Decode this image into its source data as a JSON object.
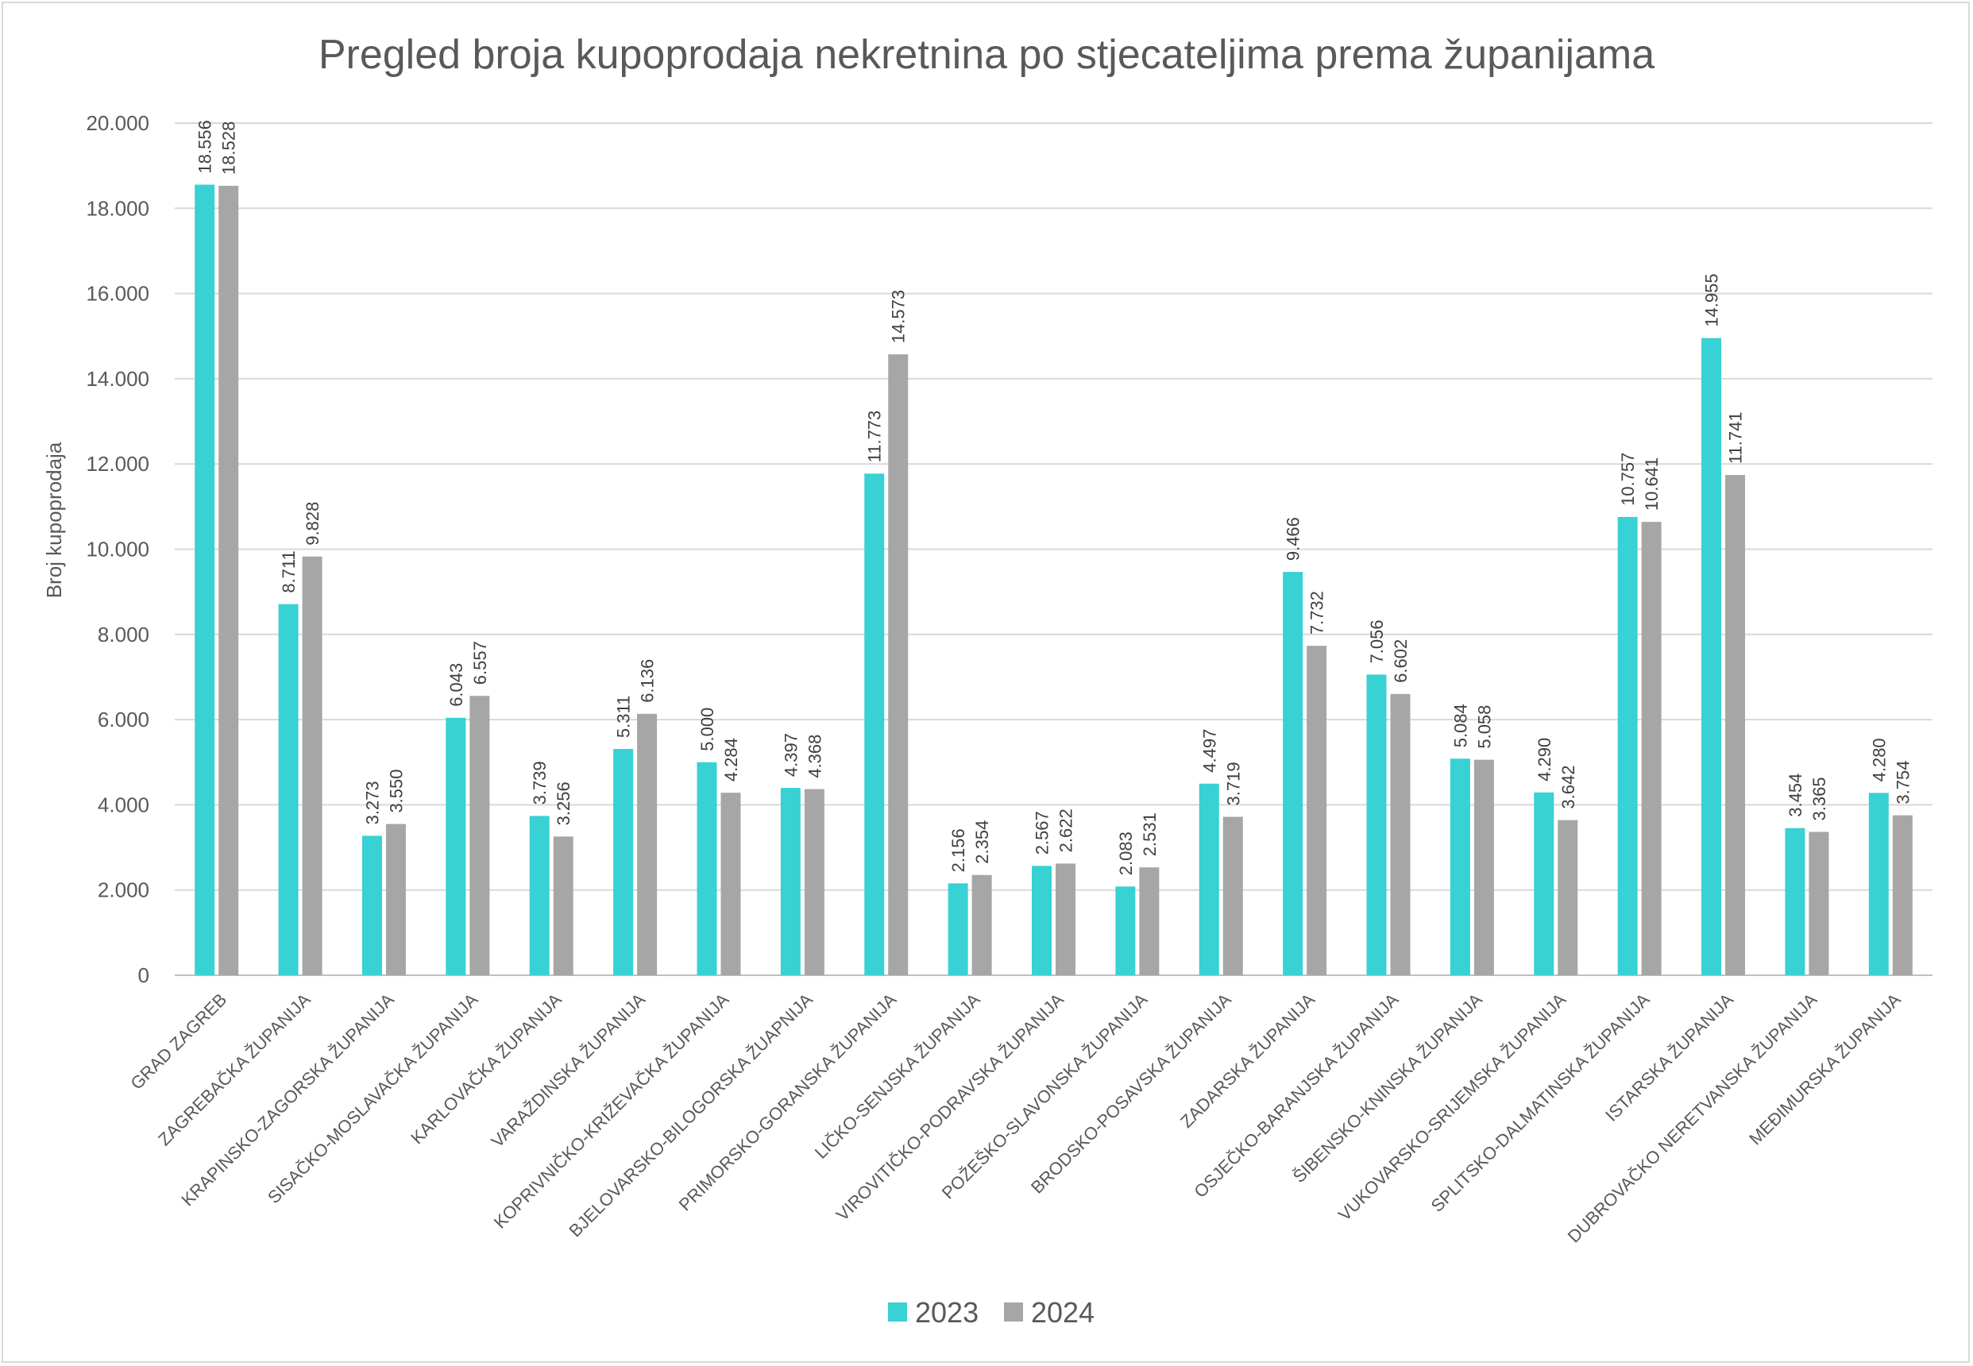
{
  "chart_data": {
    "type": "bar",
    "title": "Pregled broja kupoprodaja nekretnina po stjecateljima prema županijama",
    "ylabel": "Broj kupoprodaja",
    "xlabel": "",
    "ylim": [
      0,
      20000
    ],
    "yticks": [
      "0",
      "2.000",
      "4.000",
      "6.000",
      "8.000",
      "10.000",
      "12.000",
      "14.000",
      "16.000",
      "18.000",
      "20.000"
    ],
    "grid": true,
    "legend_position": "bottom",
    "categories": [
      "GRAD ZAGREB",
      "ZAGREBAČKA ŽUPANIJA",
      "KRAPINSKO-ZAGORSKA ŽUPANIJA",
      "SISAČKO-MOSLAVAČKA ŽUPANIJA",
      "KARLOVAČKA ŽUPANIJA",
      "VARAŽDINSKA ŽUPANIJA",
      "KOPRIVNIČKO-KRIŽEVAČKA ŽUPANIJA",
      "BJELOVARSKO-BILOGORSKA ŽUAPNIJA",
      "PRIMORSKO-GORANSKA ŽUPANIJA",
      "LIČKO-SENJSKA ŽUPANIJA",
      "VIROVITIČKO-PODRAVSKA ŽUPANIJA",
      "POŽEŠKO-SLAVONSKA ŽUPANIJA",
      "BRODSKO-POSAVSKA ŽUPANIJA",
      "ZADARSKA ŽUPANIJA",
      "OSJEČKO-BARANJSKA ŽUPANIJA",
      "ŠIBENSKO-KNINSKA ŽUPANIJA",
      "VUKOVARSKO-SRIJEMSKA ŽUPANIJA",
      "SPLITSKO-DALMATINSKA ŽUPANIJA",
      "ISTARSKA ŽUPANIJA",
      "DUBROVAČKO NERETVANSKA ŽUPANIJA",
      "MEĐIMURSKA ŽUPANIJA"
    ],
    "series": [
      {
        "name": "2023",
        "color": "#38d1d4",
        "values": [
          18556,
          8711,
          3273,
          6043,
          3739,
          5311,
          5000,
          4397,
          11773,
          2156,
          2567,
          2083,
          4497,
          9466,
          7056,
          5084,
          4290,
          10757,
          14955,
          3454,
          4280
        ],
        "labels": [
          "18.556",
          "8.711",
          "3.273",
          "6.043",
          "3.739",
          "5.311",
          "5.000",
          "4.397",
          "11.773",
          "2.156",
          "2.567",
          "2.083",
          "4.497",
          "9.466",
          "7.056",
          "5.084",
          "4.290",
          "10.757",
          "14.955",
          "3.454",
          "4.280"
        ]
      },
      {
        "name": "2024",
        "color": "#a6a6a6",
        "values": [
          18528,
          9828,
          3550,
          6557,
          3256,
          6136,
          4284,
          4368,
          14573,
          2354,
          2622,
          2531,
          3719,
          7732,
          6602,
          5058,
          3642,
          10641,
          11741,
          3365,
          3754
        ],
        "labels": [
          "18.528",
          "9.828",
          "3.550",
          "6.557",
          "3.256",
          "6.136",
          "4.284",
          "4.368",
          "14.573",
          "2.354",
          "2.622",
          "2.531",
          "3.719",
          "7.732",
          "6.602",
          "5.058",
          "3.642",
          "10.641",
          "11.741",
          "3.365",
          "3.754"
        ]
      }
    ]
  }
}
